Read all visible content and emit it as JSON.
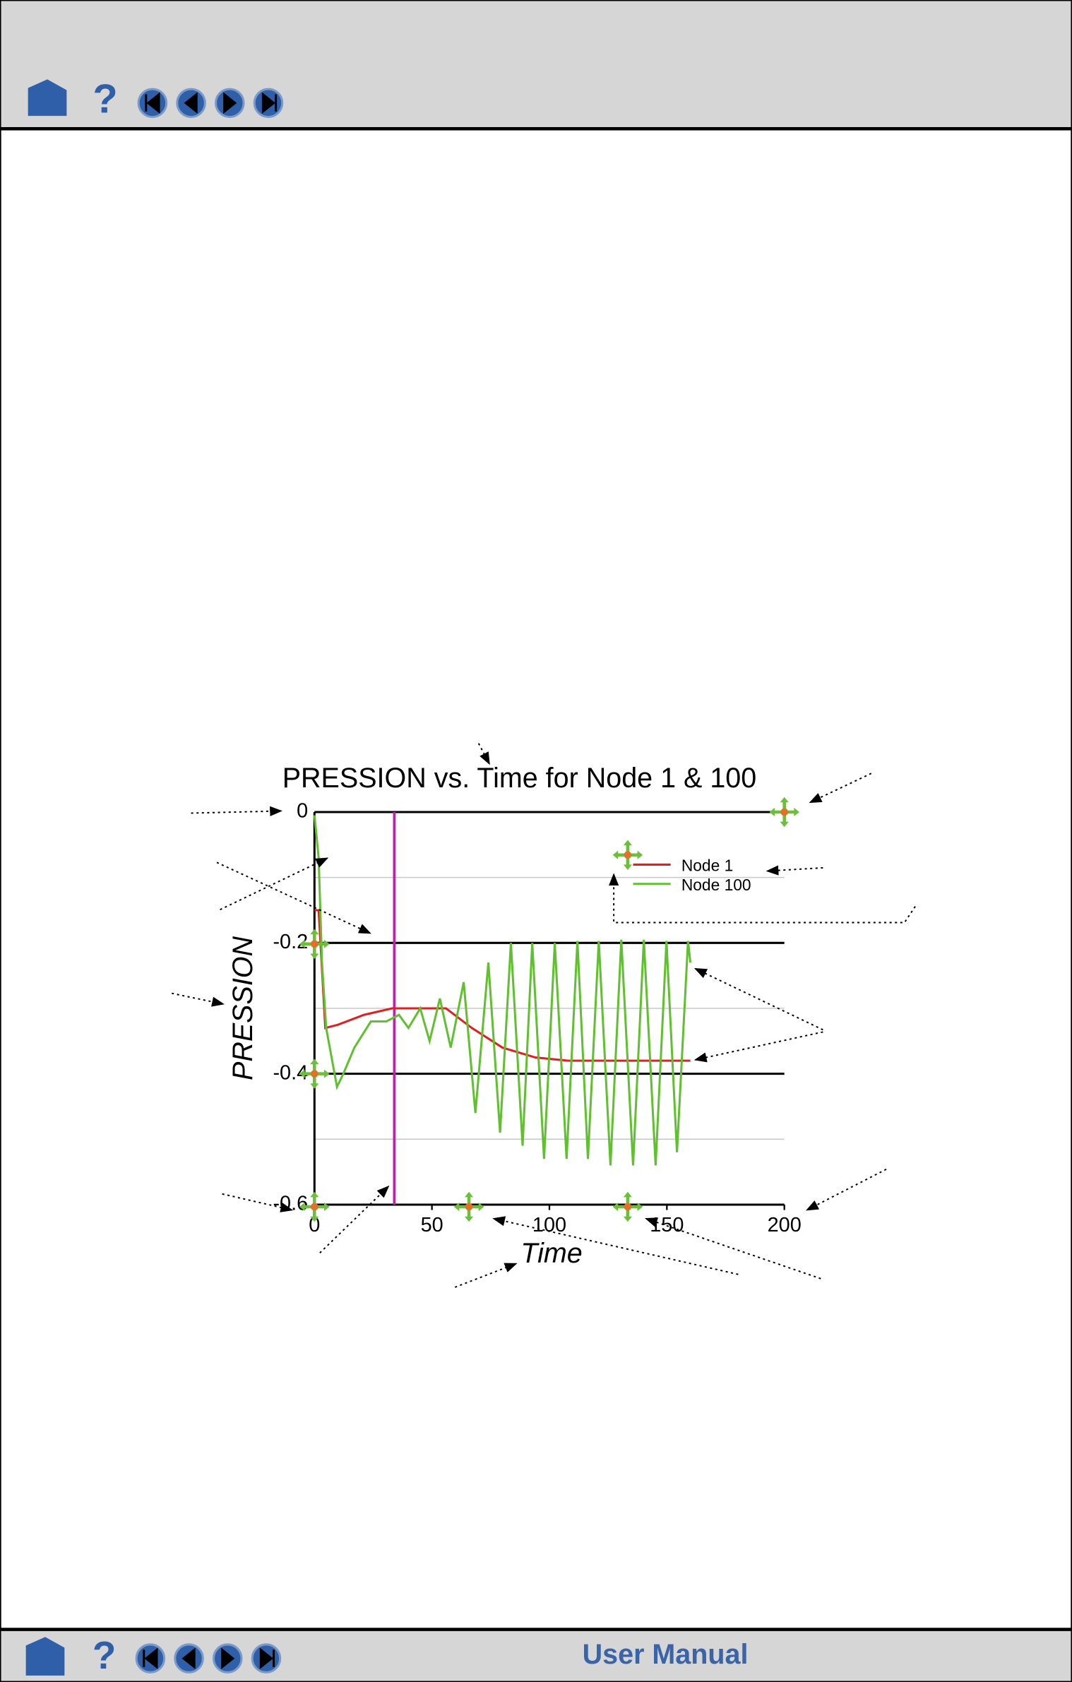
{
  "footer": {
    "title": "User Manual"
  },
  "chart_data": {
    "type": "line",
    "title": "PRESSION vs. Time for Node 1 & 100",
    "xlabel": "Time",
    "ylabel": "PRESSION",
    "xlim": [
      0,
      200
    ],
    "ylim": [
      -0.6,
      0
    ],
    "xticks": [
      0,
      50,
      100,
      150,
      200
    ],
    "yticks": [
      0,
      -0.2,
      -0.4,
      -0.6
    ],
    "minor_yticks": [
      -0.1,
      -0.3,
      -0.5
    ],
    "time_marker": 34,
    "time_marker_color": "#c020b0",
    "series": [
      {
        "name": "Node 1",
        "color": "#e02020",
        "x": [
          0,
          1.8,
          4.6,
          10,
          21,
          33,
          44,
          56,
          67,
          80,
          94,
          108,
          140,
          160
        ],
        "values": [
          -0.15,
          -0.15,
          -0.33,
          -0.325,
          -0.31,
          -0.3,
          -0.3,
          -0.3,
          -0.33,
          -0.36,
          -0.375,
          -0.38,
          -0.38,
          -0.38
        ]
      },
      {
        "name": "Node 100",
        "color": "#60c030",
        "x": [
          0,
          1.8,
          3.2,
          5,
          9.6,
          12.3,
          17,
          24,
          30.6,
          36,
          40,
          45,
          49,
          53.4,
          58,
          63.5,
          68.5,
          74,
          79,
          83.6,
          88.6,
          92.7,
          97.7,
          102.3,
          107.3,
          111.9,
          116.4,
          121,
          126,
          130.6,
          135.6,
          140.2,
          145.2,
          149.8,
          154.3,
          159,
          160
        ],
        "values": [
          -0.005,
          -0.07,
          -0.23,
          -0.33,
          -0.42,
          -0.4,
          -0.36,
          -0.32,
          -0.32,
          -0.31,
          -0.33,
          -0.3,
          -0.35,
          -0.285,
          -0.36,
          -0.26,
          -0.46,
          -0.23,
          -0.49,
          -0.2,
          -0.51,
          -0.2,
          -0.53,
          -0.2,
          -0.53,
          -0.197,
          -0.53,
          -0.197,
          -0.54,
          -0.195,
          -0.54,
          -0.195,
          -0.54,
          -0.197,
          -0.52,
          -0.197,
          -0.23
        ]
      }
    ]
  }
}
